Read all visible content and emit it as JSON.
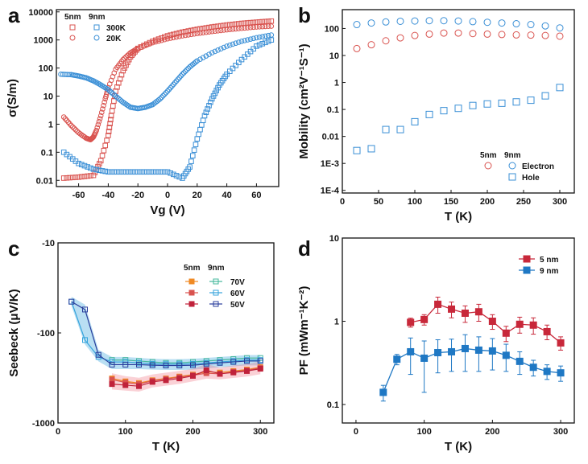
{
  "colors": {
    "red": "#d9534f",
    "blue": "#3a8fd6",
    "orange": "#f08a24",
    "crimson": "#c0223b",
    "teal": "#45b89c",
    "sky": "#36a4dc",
    "navy": "#2a3e9c",
    "pf_red": "#c8283a",
    "pf_blue": "#1f78c4"
  },
  "chart_data": [
    {
      "panel": "a",
      "type": "scatter",
      "xlabel": "Vg (V)",
      "ylabel": "σ(S/m)",
      "xlim": [
        -75,
        75
      ],
      "ylim": [
        0.006,
        12000
      ],
      "yscale": "log",
      "xticks": [
        {
          "v": -60,
          "label": "-60"
        },
        {
          "v": -40,
          "label": "-40"
        },
        {
          "v": -20,
          "label": "-20"
        },
        {
          "v": 0,
          "label": "0"
        },
        {
          "v": 20,
          "label": "20"
        },
        {
          "v": 40,
          "label": "40"
        },
        {
          "v": 60,
          "label": "60"
        }
      ],
      "yticks": [
        {
          "v": 0.01,
          "label": "0.01"
        },
        {
          "v": 0.1,
          "label": "0.1"
        },
        {
          "v": 1,
          "label": "1"
        },
        {
          "v": 10,
          "label": "10"
        },
        {
          "v": 100,
          "label": "100"
        },
        {
          "v": 1000,
          "label": "1000"
        },
        {
          "v": 10000,
          "label": "10000"
        }
      ],
      "legend": {
        "header_5nm": "5nm",
        "header_9nm": "9nm",
        "entry_300K": "300K",
        "entry_20K": "20K"
      },
      "series": [
        {
          "name": "5nm 300K",
          "marker": "square",
          "color": "red",
          "x": [
            -70,
            -60,
            -50,
            -45,
            -40,
            -38,
            -35,
            -30,
            -25,
            -20,
            -10,
            0,
            10,
            20,
            30,
            40,
            50,
            60,
            70
          ],
          "y": [
            0.012,
            0.013,
            0.015,
            0.05,
            0.4,
            2,
            15,
            80,
            250,
            500,
            900,
            1400,
            1900,
            2400,
            2900,
            3400,
            3900,
            4300,
            4700
          ]
        },
        {
          "name": "5nm 20K",
          "marker": "circle",
          "color": "red",
          "x": [
            -70,
            -65,
            -60,
            -55,
            -52,
            -50,
            -48,
            -45,
            -42,
            -40,
            -35,
            -30,
            -25,
            -20,
            -10,
            0,
            10,
            20,
            30,
            40,
            50,
            60,
            70
          ],
          "y": [
            1.8,
            0.9,
            0.5,
            0.32,
            0.28,
            0.35,
            0.6,
            2,
            8,
            20,
            90,
            200,
            350,
            500,
            800,
            1100,
            1400,
            1700,
            2000,
            2300,
            2600,
            2900,
            3100
          ]
        },
        {
          "name": "9nm 300K",
          "marker": "square",
          "color": "blue",
          "x": [
            -70,
            -60,
            -50,
            -40,
            -30,
            -20,
            -10,
            0,
            10,
            15,
            20,
            25,
            30,
            35,
            40,
            50,
            60,
            70
          ],
          "y": [
            0.1,
            0.04,
            0.025,
            0.02,
            0.02,
            0.02,
            0.02,
            0.02,
            0.012,
            0.03,
            0.3,
            2,
            8,
            25,
            60,
            200,
            600,
            1000
          ]
        },
        {
          "name": "9nm 20K",
          "marker": "circle",
          "color": "blue",
          "x": [
            -72,
            -65,
            -60,
            -55,
            -50,
            -45,
            -40,
            -35,
            -30,
            -25,
            -20,
            -15,
            -10,
            -5,
            0,
            5,
            10,
            15,
            20,
            30,
            40,
            50,
            60,
            70
          ],
          "y": [
            60,
            58,
            52,
            45,
            35,
            25,
            17,
            10,
            6,
            4,
            3.6,
            4,
            5,
            8,
            15,
            30,
            60,
            110,
            180,
            350,
            600,
            900,
            1200,
            1500
          ]
        }
      ]
    },
    {
      "panel": "b",
      "type": "scatter",
      "xlabel": "T (K)",
      "ylabel": "Mobility (cm²V⁻¹S⁻¹)",
      "xlim": [
        0,
        320
      ],
      "ylim": [
        8e-05,
        500
      ],
      "yscale": "log",
      "xticks": [
        {
          "v": 0,
          "label": "0"
        },
        {
          "v": 50,
          "label": "50"
        },
        {
          "v": 100,
          "label": "100"
        },
        {
          "v": 150,
          "label": "150"
        },
        {
          "v": 200,
          "label": "200"
        },
        {
          "v": 250,
          "label": "250"
        },
        {
          "v": 300,
          "label": "300"
        }
      ],
      "yticks": [
        {
          "v": 0.0001,
          "label": "1E-4"
        },
        {
          "v": 0.001,
          "label": "1E-3"
        },
        {
          "v": 0.01,
          "label": "0.01"
        },
        {
          "v": 0.1,
          "label": "0.1"
        },
        {
          "v": 1,
          "label": "1"
        },
        {
          "v": 10,
          "label": "10"
        },
        {
          "v": 100,
          "label": "100"
        }
      ],
      "legend": {
        "header_5nm": "5nm",
        "header_9nm": "9nm",
        "entry_electron": "Electron",
        "entry_hole": "Hole"
      },
      "series": [
        {
          "name": "5nm Electron",
          "marker": "circle",
          "color": "red",
          "x": [
            20,
            40,
            60,
            80,
            100,
            120,
            140,
            160,
            180,
            200,
            220,
            240,
            260,
            280,
            300
          ],
          "y": [
            18,
            25,
            35,
            45,
            55,
            62,
            68,
            68,
            65,
            62,
            60,
            58,
            57,
            55,
            52
          ]
        },
        {
          "name": "9nm Electron",
          "marker": "circle",
          "color": "blue",
          "x": [
            20,
            40,
            60,
            80,
            100,
            120,
            140,
            160,
            180,
            200,
            220,
            240,
            260,
            280,
            300
          ],
          "y": [
            140,
            160,
            175,
            185,
            190,
            195,
            195,
            190,
            180,
            170,
            160,
            150,
            140,
            125,
            105
          ]
        },
        {
          "name": "9nm Hole",
          "marker": "square",
          "color": "blue",
          "x": [
            20,
            40,
            60,
            80,
            100,
            120,
            140,
            160,
            180,
            200,
            220,
            240,
            260,
            280,
            300
          ],
          "y": [
            0.003,
            0.0035,
            0.018,
            0.018,
            0.035,
            0.065,
            0.09,
            0.11,
            0.14,
            0.16,
            0.17,
            0.19,
            0.22,
            0.32,
            0.65
          ]
        }
      ]
    },
    {
      "panel": "c",
      "type": "line",
      "xlabel": "T (K)",
      "ylabel": "Seebeck (μV/K)",
      "xlim": [
        0,
        320
      ],
      "ylim": [
        -1000,
        -10
      ],
      "yscale": "log",
      "xticks": [
        {
          "v": 0,
          "label": "0"
        },
        {
          "v": 100,
          "label": "100"
        },
        {
          "v": 200,
          "label": "200"
        },
        {
          "v": 300,
          "label": "300"
        }
      ],
      "yticks": [
        {
          "v": -10,
          "label": "-10"
        },
        {
          "v": -100,
          "label": "-100"
        },
        {
          "v": -1000,
          "label": "-1000"
        }
      ],
      "legend": {
        "header_5nm": "5nm",
        "header_9nm": "9nm",
        "entry_70V": "70V",
        "entry_60V": "60V",
        "entry_50V": "50V"
      },
      "series": [
        {
          "name": "9nm 70V",
          "color": "teal",
          "x": [
            80,
            100,
            120,
            140,
            160,
            180,
            200,
            220,
            240,
            260,
            280,
            300
          ],
          "y": [
            -200,
            -200,
            -205,
            -210,
            -215,
            -215,
            -210,
            -205,
            -200,
            -195,
            -190,
            -190
          ]
        },
        {
          "name": "9nm 60V",
          "color": "sky",
          "x": [
            20,
            40,
            60,
            80,
            100,
            120,
            140,
            160,
            180,
            200,
            220,
            240,
            260,
            280,
            300
          ],
          "y": [
            -45,
            -120,
            -185,
            -210,
            -210,
            -215,
            -220,
            -222,
            -222,
            -220,
            -215,
            -210,
            -205,
            -200,
            -200
          ]
        },
        {
          "name": "9nm 50V",
          "color": "navy",
          "x": [
            20,
            40,
            60,
            80,
            100,
            120,
            140,
            160,
            180,
            200,
            220,
            240,
            260,
            280,
            300
          ],
          "y": [
            -45,
            -55,
            -175,
            -225,
            -225,
            -225,
            -228,
            -230,
            -230,
            -228,
            -222,
            -215,
            -210,
            -205,
            -205
          ]
        },
        {
          "name": "5nm 70V",
          "color": "orange",
          "x": [
            80,
            100,
            120,
            140,
            160,
            180,
            200,
            220,
            240,
            260,
            280,
            300
          ],
          "y": [
            -320,
            -345,
            -360,
            -335,
            -320,
            -305,
            -290,
            -270,
            -275,
            -265,
            -255,
            -240
          ]
        },
        {
          "name": "5nm 60V",
          "color": "red",
          "x": [
            80,
            100,
            120,
            140,
            160,
            180,
            200,
            220,
            240,
            260,
            280,
            300
          ],
          "y": [
            -330,
            -355,
            -370,
            -340,
            -325,
            -310,
            -295,
            -280,
            -285,
            -270,
            -260,
            -245
          ]
        },
        {
          "name": "5nm 50V",
          "color": "crimson",
          "x": [
            80,
            100,
            120,
            140,
            160,
            180,
            200,
            220,
            240,
            260,
            280,
            300
          ],
          "y": [
            -370,
            -380,
            -390,
            -350,
            -335,
            -320,
            -300,
            -260,
            -285,
            -275,
            -265,
            -250
          ]
        }
      ]
    },
    {
      "panel": "d",
      "type": "line",
      "xlabel": "T (K)",
      "ylabel": "PF (mWm⁻¹K⁻²)",
      "xlim": [
        -20,
        320
      ],
      "ylim": [
        0.06,
        10
      ],
      "yscale": "log",
      "xticks": [
        {
          "v": 0,
          "label": "0"
        },
        {
          "v": 100,
          "label": "100"
        },
        {
          "v": 200,
          "label": "200"
        },
        {
          "v": 300,
          "label": "300"
        }
      ],
      "yticks": [
        {
          "v": 0.1,
          "label": "0.1"
        },
        {
          "v": 1,
          "label": "1"
        },
        {
          "v": 10,
          "label": "10"
        }
      ],
      "legend": {
        "entry_5nm": "5 nm",
        "entry_9nm": "9 nm"
      },
      "series": [
        {
          "name": "5 nm",
          "color": "pf_red",
          "x": [
            80,
            100,
            120,
            140,
            160,
            180,
            200,
            220,
            240,
            260,
            280,
            300
          ],
          "y": [
            0.97,
            1.05,
            1.6,
            1.4,
            1.25,
            1.3,
            1.0,
            0.72,
            0.92,
            0.9,
            0.75,
            0.55
          ],
          "err": [
            0.12,
            0.15,
            0.35,
            0.3,
            0.28,
            0.3,
            0.2,
            0.15,
            0.2,
            0.2,
            0.15,
            0.1
          ]
        },
        {
          "name": "9 nm",
          "color": "pf_blue",
          "x": [
            40,
            60,
            80,
            100,
            120,
            140,
            160,
            180,
            200,
            220,
            240,
            260,
            280,
            300
          ],
          "y": [
            0.14,
            0.35,
            0.43,
            0.36,
            0.42,
            0.43,
            0.47,
            0.45,
            0.44,
            0.39,
            0.33,
            0.28,
            0.25,
            0.24
          ],
          "err": [
            0.03,
            0.05,
            0.2,
            0.22,
            0.18,
            0.18,
            0.22,
            0.2,
            0.18,
            0.14,
            0.1,
            0.06,
            0.05,
            0.05
          ]
        }
      ]
    }
  ]
}
